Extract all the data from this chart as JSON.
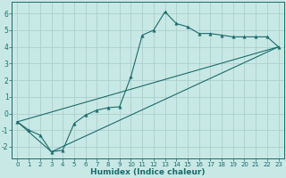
{
  "title": "",
  "xlabel": "Humidex (Indice chaleur)",
  "xlim": [
    -0.5,
    23.5
  ],
  "ylim": [
    -2.7,
    6.7
  ],
  "xticks": [
    0,
    1,
    2,
    3,
    4,
    5,
    6,
    7,
    8,
    9,
    10,
    11,
    12,
    13,
    14,
    15,
    16,
    17,
    18,
    19,
    20,
    21,
    22,
    23
  ],
  "yticks": [
    -2,
    -1,
    0,
    1,
    2,
    3,
    4,
    5,
    6
  ],
  "bg_color": "#c8e8e5",
  "line_color": "#1a6b6b",
  "grid_color": "#aacfcc",
  "line1_x": [
    0,
    1,
    2,
    3,
    4,
    5,
    6,
    7,
    8,
    9,
    10,
    11,
    12,
    13,
    14,
    15,
    16,
    17,
    18,
    19,
    20,
    21,
    22,
    23
  ],
  "line1_y": [
    -0.5,
    -1.0,
    -1.3,
    -2.3,
    -2.2,
    -0.6,
    -0.1,
    0.2,
    0.35,
    0.4,
    2.2,
    4.7,
    5.0,
    6.1,
    5.4,
    5.2,
    4.8,
    4.8,
    4.7,
    4.6,
    4.6,
    4.6,
    4.6,
    4.0
  ],
  "line2_x": [
    0,
    23
  ],
  "line2_y": [
    -0.5,
    4.0
  ],
  "line3_x": [
    0,
    3,
    23
  ],
  "line3_y": [
    -0.5,
    -2.3,
    4.0
  ],
  "markersize": 2.5,
  "linewidth": 0.8,
  "tick_fontsize": 5.0,
  "xlabel_fontsize": 6.5
}
